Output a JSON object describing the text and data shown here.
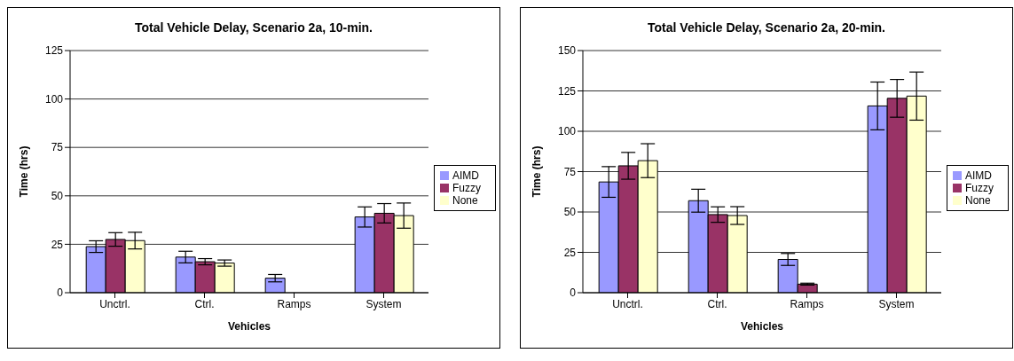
{
  "chart_data": [
    {
      "type": "bar",
      "title": "Total Vehicle Delay, Scenario 2a, 10-min.",
      "xlabel": "Vehicles",
      "ylabel": "Time (hrs)",
      "categories": [
        "Unctrl.",
        "Ctrl.",
        "Ramps",
        "System"
      ],
      "ylim": [
        0,
        125
      ],
      "yticks": [
        0,
        25,
        50,
        75,
        100,
        125
      ],
      "grid": "y",
      "legend": "right",
      "series": [
        {
          "name": "AIMD",
          "color": "#9999ff",
          "values": [
            23.8,
            18.4,
            7.5,
            39.1
          ],
          "errors": [
            3,
            3,
            1.9,
            5.2
          ]
        },
        {
          "name": "Fuzzy",
          "color": "#993366",
          "values": [
            27.5,
            16,
            null,
            41
          ],
          "errors": [
            3.5,
            1.6,
            null,
            5
          ]
        },
        {
          "name": "None",
          "color": "#ffffcc",
          "values": [
            26.9,
            15.3,
            0,
            39.8
          ],
          "errors": [
            4.3,
            1.6,
            null,
            6.5
          ]
        }
      ]
    },
    {
      "type": "bar",
      "title": "Total Vehicle Delay, Scenario 2a, 20-min.",
      "xlabel": "Vehicles",
      "ylabel": "Time (hrs)",
      "categories": [
        "Unctrl.",
        "Ctrl.",
        "Ramps",
        "System"
      ],
      "ylim": [
        0,
        150
      ],
      "yticks": [
        0,
        25,
        50,
        75,
        100,
        125,
        150
      ],
      "grid": "y",
      "legend": "right",
      "series": [
        {
          "name": "AIMD",
          "color": "#9999ff",
          "values": [
            68.6,
            57,
            20.6,
            115.7
          ],
          "errors": [
            9.5,
            7.1,
            3.7,
            14.8
          ]
        },
        {
          "name": "Fuzzy",
          "color": "#993366",
          "values": [
            78.6,
            48.4,
            5.3,
            120.4
          ],
          "errors": [
            8.3,
            4.8,
            0.6,
            11.7
          ]
        },
        {
          "name": "None",
          "color": "#ffffcc",
          "values": [
            81.8,
            47.8,
            0,
            121.8
          ],
          "errors": [
            10.5,
            5.5,
            null,
            14.9
          ]
        }
      ]
    }
  ]
}
